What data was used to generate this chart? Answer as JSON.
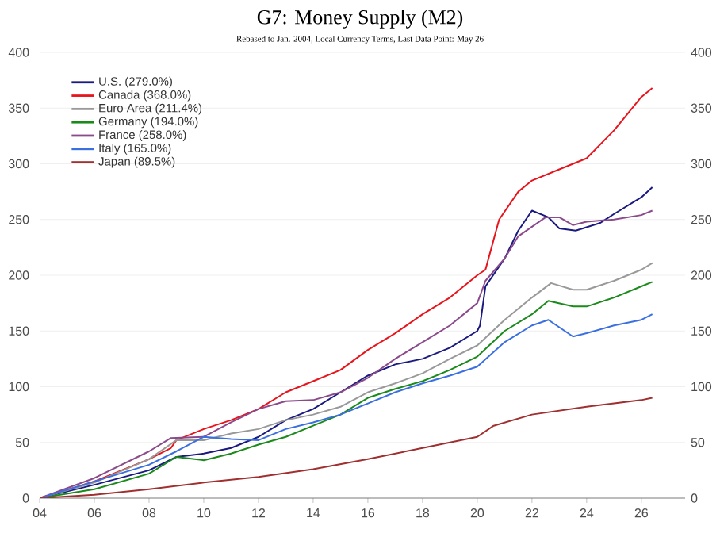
{
  "chart_data": {
    "type": "line",
    "title": "G7: Money Supply (M2)",
    "subtitle": "Rebased to Jan. 2004, Local Currency Terms, Last Data Point: May 26",
    "xlim": [
      2004,
      2027.6
    ],
    "xticks": [
      {
        "value": 2004,
        "label": "04"
      },
      {
        "value": 2006,
        "label": "06"
      },
      {
        "value": 2008,
        "label": "08"
      },
      {
        "value": 2010,
        "label": "10"
      },
      {
        "value": 2012,
        "label": "12"
      },
      {
        "value": 2014,
        "label": "14"
      },
      {
        "value": 2016,
        "label": "16"
      },
      {
        "value": 2018,
        "label": "18"
      },
      {
        "value": 2020,
        "label": "20"
      },
      {
        "value": 2022,
        "label": "22"
      },
      {
        "value": 2024,
        "label": "24"
      },
      {
        "value": 2026,
        "label": "26"
      }
    ],
    "ylim": [
      0,
      400
    ],
    "yticks": [
      0,
      50,
      100,
      150,
      200,
      250,
      300,
      350,
      400
    ],
    "y2lim": [
      0,
      400
    ],
    "y2ticks": [
      0,
      50,
      100,
      150,
      200,
      250,
      300,
      350,
      400
    ],
    "grid": "y",
    "legend": "top left",
    "line_style": "solid",
    "marker": "none",
    "series": [
      {
        "name": "U.S. (279.0%)",
        "color": "#1a1a80",
        "x": [
          2004,
          2006,
          2008,
          2009,
          2010,
          2011,
          2012,
          2013,
          2014,
          2015,
          2016,
          2017,
          2018,
          2019,
          2020,
          2020.1,
          2020.3,
          2021,
          2021.5,
          2022,
          2022.6,
          2023,
          2023.6,
          2024.5,
          2025,
          2026,
          2026.4
        ],
        "values": [
          0,
          12,
          25,
          37,
          40,
          45,
          55,
          70,
          80,
          95,
          110,
          120,
          125,
          135,
          150,
          155,
          190,
          215,
          240,
          258,
          252,
          242,
          240,
          247,
          255,
          270,
          279
        ]
      },
      {
        "name": "Canada (368.0%)",
        "color": "#e8141c",
        "x": [
          2004,
          2006,
          2008,
          2008.8,
          2009,
          2010,
          2011,
          2012,
          2013,
          2014,
          2015,
          2016,
          2017,
          2018,
          2019,
          2020,
          2020.3,
          2020.8,
          2021.5,
          2022,
          2023,
          2024,
          2025,
          2026,
          2026.4
        ],
        "values": [
          0,
          15,
          35,
          45,
          52,
          62,
          70,
          80,
          95,
          105,
          115,
          133,
          148,
          165,
          180,
          200,
          205,
          250,
          275,
          285,
          295,
          305,
          330,
          360,
          368
        ]
      },
      {
        "name": "Euro Area (211.4%)",
        "color": "#999999",
        "x": [
          2004,
          2006,
          2008,
          2009,
          2010,
          2011,
          2012,
          2013,
          2014,
          2015,
          2016,
          2017,
          2018,
          2019,
          2020,
          2021,
          2022,
          2022.7,
          2023.5,
          2024,
          2025,
          2026,
          2026.4
        ],
        "values": [
          0,
          14,
          35,
          52,
          52,
          58,
          62,
          70,
          75,
          82,
          95,
          103,
          112,
          125,
          137,
          160,
          180,
          193,
          187,
          187,
          195,
          205,
          211
        ]
      },
      {
        "name": "Germany (194.0%)",
        "color": "#1a8a1a",
        "x": [
          2004,
          2006,
          2008,
          2009,
          2010,
          2011,
          2012,
          2013,
          2014,
          2015,
          2016,
          2017,
          2018,
          2019,
          2020,
          2021,
          2022,
          2022.6,
          2023.5,
          2024,
          2025,
          2026,
          2026.4
        ],
        "values": [
          0,
          8,
          22,
          37,
          34,
          40,
          48,
          55,
          65,
          75,
          90,
          98,
          105,
          115,
          127,
          150,
          165,
          177,
          172,
          172,
          180,
          190,
          194
        ]
      },
      {
        "name": "France (258.0%)",
        "color": "#8b4a8b",
        "x": [
          2004,
          2006,
          2008,
          2008.8,
          2010,
          2011,
          2012,
          2013,
          2014,
          2015,
          2016,
          2017,
          2018,
          2019,
          2020,
          2020.3,
          2021,
          2021.5,
          2022.5,
          2023,
          2023.5,
          2024,
          2025,
          2026,
          2026.4
        ],
        "values": [
          0,
          18,
          42,
          54,
          55,
          68,
          80,
          87,
          88,
          95,
          108,
          125,
          140,
          155,
          175,
          195,
          215,
          235,
          252,
          252,
          245,
          248,
          250,
          254,
          258
        ]
      },
      {
        "name": "Italy (165.0%)",
        "color": "#3a6fe0",
        "x": [
          2004,
          2006,
          2008,
          2009,
          2010,
          2011,
          2012,
          2013,
          2014,
          2015,
          2016,
          2017,
          2018,
          2019,
          2020,
          2021,
          2022,
          2022.6,
          2023.5,
          2024,
          2025,
          2026,
          2026.4
        ],
        "values": [
          0,
          15,
          30,
          42,
          55,
          53,
          52,
          62,
          68,
          75,
          85,
          95,
          103,
          110,
          118,
          140,
          155,
          160,
          145,
          148,
          155,
          160,
          165
        ]
      },
      {
        "name": "Japan (89.5%)",
        "color": "#a03030",
        "x": [
          2004,
          2006,
          2008,
          2010,
          2012,
          2014,
          2016,
          2018,
          2020,
          2020.6,
          2022,
          2024,
          2026,
          2026.4
        ],
        "values": [
          0,
          3,
          8,
          14,
          19,
          26,
          35,
          45,
          55,
          65,
          75,
          82,
          88,
          90
        ]
      }
    ]
  }
}
